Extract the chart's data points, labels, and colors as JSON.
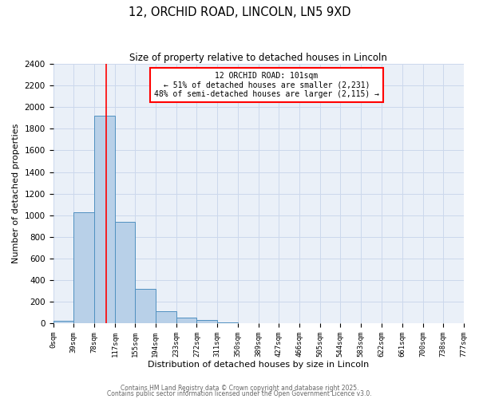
{
  "title": "12, ORCHID ROAD, LINCOLN, LN5 9XD",
  "subtitle": "Size of property relative to detached houses in Lincoln",
  "xlabel": "Distribution of detached houses by size in Lincoln",
  "ylabel": "Number of detached properties",
  "bin_edges": [
    0,
    39,
    78,
    117,
    155,
    194,
    233,
    272,
    311,
    350,
    389,
    427,
    466,
    505,
    544,
    583,
    622,
    661,
    700,
    738,
    777
  ],
  "bin_counts": [
    20,
    1030,
    1920,
    940,
    320,
    110,
    55,
    30,
    5,
    2,
    1,
    0,
    0,
    0,
    0,
    0,
    0,
    0,
    0,
    0
  ],
  "bar_facecolor": "#b8d0e8",
  "bar_edgecolor": "#5090c0",
  "vline_x": 101,
  "vline_color": "red",
  "annotation_text": "12 ORCHID ROAD: 101sqm\n← 51% of detached houses are smaller (2,231)\n48% of semi-detached houses are larger (2,115) →",
  "annotation_boxcolor": "white",
  "annotation_boxedge": "red",
  "ylim": [
    0,
    2400
  ],
  "yticks": [
    0,
    200,
    400,
    600,
    800,
    1000,
    1200,
    1400,
    1600,
    1800,
    2000,
    2200,
    2400
  ],
  "tick_labels": [
    "0sqm",
    "39sqm",
    "78sqm",
    "117sqm",
    "155sqm",
    "194sqm",
    "233sqm",
    "272sqm",
    "311sqm",
    "350sqm",
    "389sqm",
    "427sqm",
    "466sqm",
    "505sqm",
    "544sqm",
    "583sqm",
    "622sqm",
    "661sqm",
    "700sqm",
    "738sqm",
    "777sqm"
  ],
  "grid_color": "#ccd8ec",
  "bg_color": "#eaf0f8",
  "footer1": "Contains HM Land Registry data © Crown copyright and database right 2025.",
  "footer2": "Contains public sector information licensed under the Open Government Licence v3.0."
}
